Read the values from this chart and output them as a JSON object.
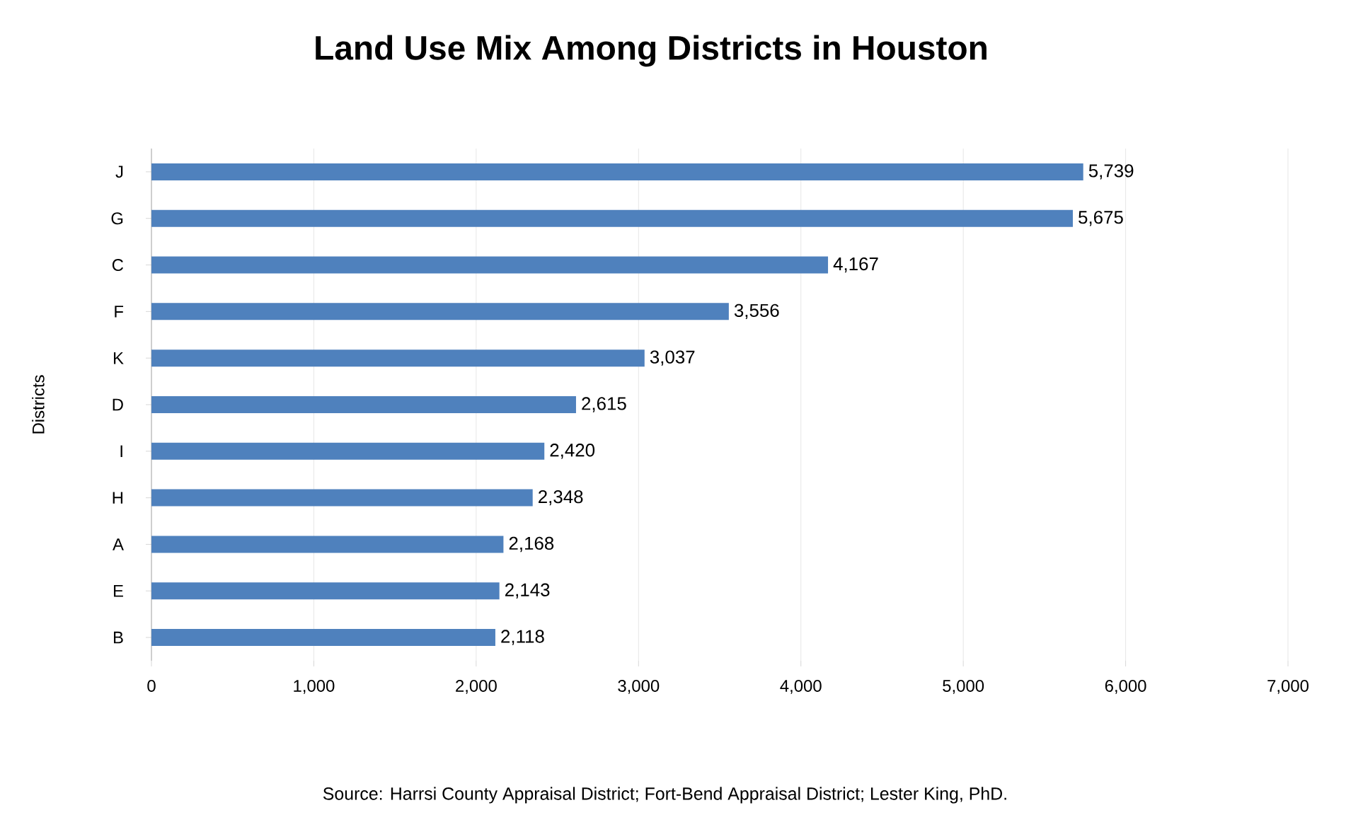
{
  "chart_data": {
    "type": "bar",
    "orientation": "horizontal",
    "title": "Land Use Mix Among Districts in Houston",
    "ylabel": "Districts",
    "categories": [
      "J",
      "G",
      "C",
      "F",
      "K",
      "D",
      "I",
      "H",
      "A",
      "E",
      "B"
    ],
    "values": [
      5739,
      5675,
      4167,
      3556,
      3037,
      2615,
      2420,
      2348,
      2168,
      2143,
      2118
    ],
    "value_labels": [
      "5,739",
      "5,675",
      "4,167",
      "3,556",
      "3,037",
      "2,615",
      "2,420",
      "2,348",
      "2,168",
      "2,143",
      "2,118"
    ],
    "color": "#4f81bd",
    "xlim": [
      0,
      7000
    ],
    "xticks": [
      0,
      {
        "value": 1000,
        "label": "1,000"
      },
      {
        "value": 2000,
        "label": "2,000"
      },
      {
        "value": 3000,
        "label": "3,000"
      },
      {
        "value": 4000,
        "label": "4,000"
      },
      {
        "value": 5000,
        "label": "5,000"
      },
      {
        "value": 6000,
        "label": "6,000"
      },
      {
        "value": 7000,
        "label": "7,000"
      }
    ],
    "grid": "x",
    "annotations": [
      "Source: Harrsi County Appraisal District; Fort-Bend Appraisal District; Lester King, PhD."
    ]
  }
}
